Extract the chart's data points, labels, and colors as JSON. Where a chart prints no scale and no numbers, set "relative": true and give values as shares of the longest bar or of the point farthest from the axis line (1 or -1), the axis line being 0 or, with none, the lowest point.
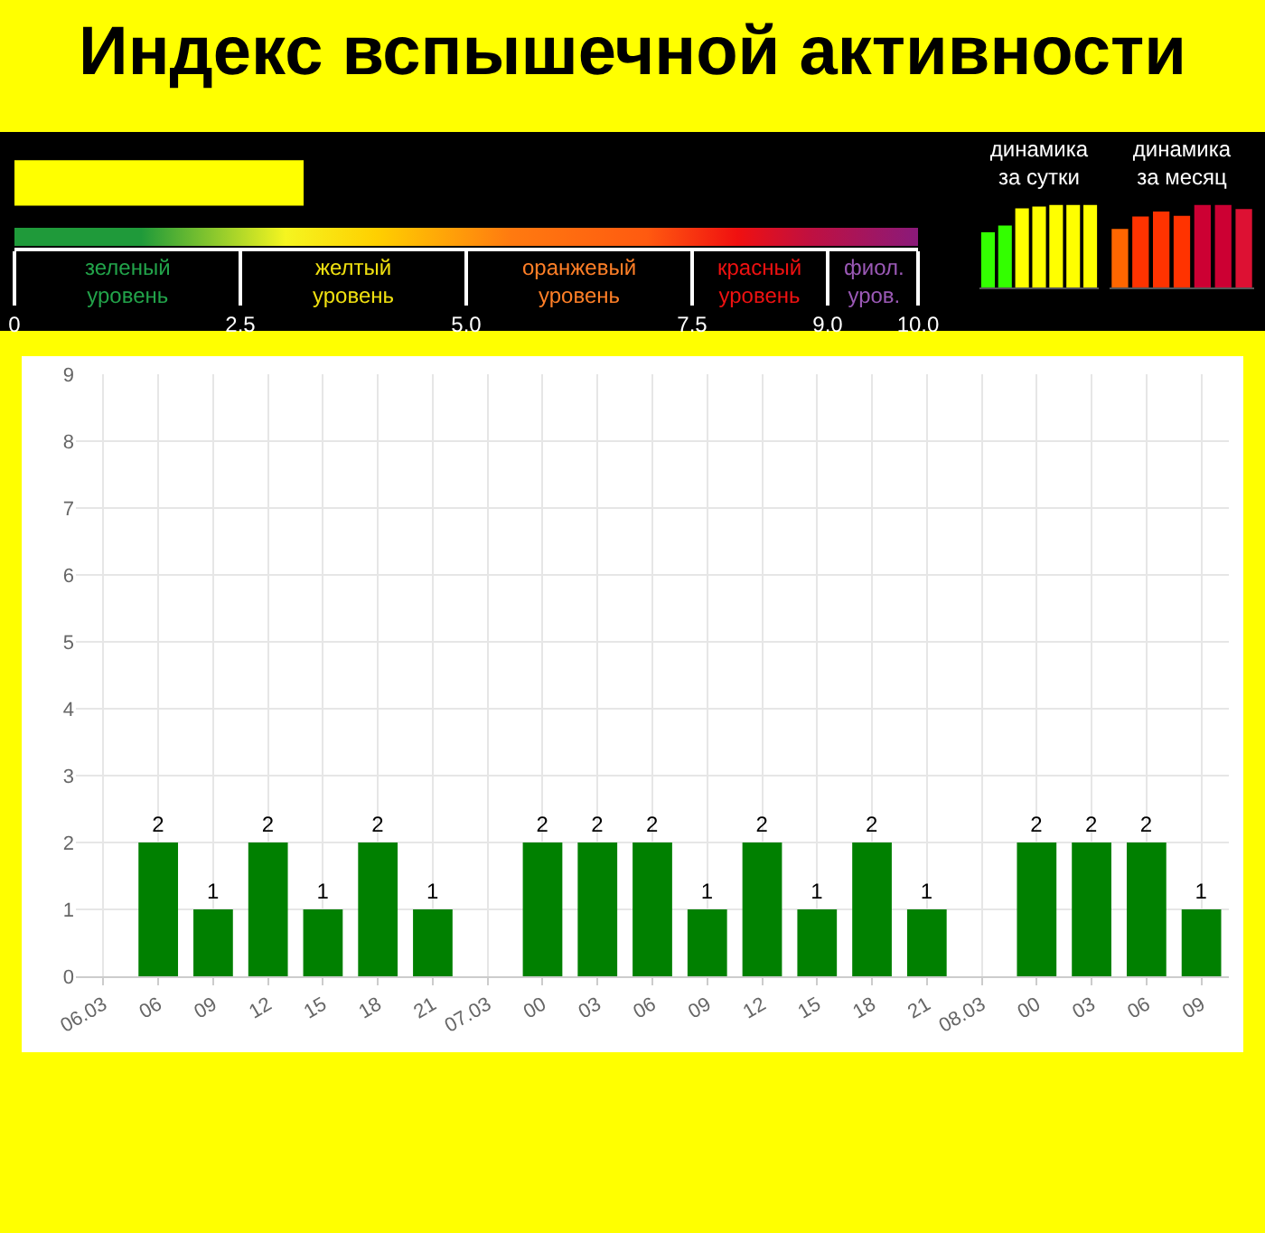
{
  "chart_data": [
    {
      "type": "bar",
      "title": "Индекс вспышечной активности",
      "orientation": "horizontal",
      "categories": [
        null
      ],
      "values": [
        3.2
      ],
      "color": "#ffff00",
      "xlim": [
        0,
        10
      ],
      "xticks": [
        0,
        2.5,
        {
          "value": 5,
          "label": "5.0"
        },
        7.5,
        {
          "value": 9,
          "label": "9.0"
        },
        {
          "value": 10,
          "label": "10.0"
        }
      ],
      "tick_labels": "x",
      "annotations": [
        "зеленый уровень",
        "желтый уровень",
        "оранжевый уровень",
        "красный уровень",
        "фиол. уров."
      ]
    },
    {
      "type": "bar",
      "title": "динамика за сутки",
      "relative": true,
      "categories": [
        null,
        null,
        null,
        null,
        null,
        null,
        null
      ],
      "values": [
        0.67,
        0.75,
        0.96,
        0.98,
        1,
        1,
        1
      ],
      "colors": [
        "#33ff00",
        "#33ff00",
        "#ffff00",
        "#ffff00",
        "#ffff00",
        "#ffff00",
        "#ffff00"
      ]
    },
    {
      "type": "bar",
      "title": "динамика за месяц",
      "relative": true,
      "categories": [
        null,
        null,
        null,
        null,
        null,
        null,
        null
      ],
      "values": [
        0.71,
        0.86,
        0.92,
        0.87,
        1,
        1,
        0.95
      ],
      "colors": [
        "#ff6600",
        "#ff3300",
        "#ff3300",
        "#ff3300",
        "#cc0033",
        "#cc0033",
        "#dd1133"
      ]
    },
    {
      "type": "bar",
      "categories": [
        "06.03",
        "06",
        "09",
        "12",
        "15",
        "18",
        "21",
        "07.03",
        "00",
        "03",
        "06",
        "09",
        "12",
        "15",
        "18",
        "21",
        "08.03",
        "00",
        "03",
        "06",
        "09"
      ],
      "values": [
        0,
        2,
        1,
        2,
        1,
        2,
        1,
        0,
        2,
        2,
        2,
        1,
        2,
        1,
        2,
        1,
        0,
        2,
        2,
        2,
        1
      ],
      "value_labels": [
        null,
        "2",
        "1",
        "2",
        "1",
        "2",
        "1",
        null,
        "2",
        "2",
        "2",
        "1",
        "2",
        "1",
        "2",
        "1",
        null,
        "2",
        "2",
        "2",
        "1"
      ],
      "color": "#008000",
      "ylim": [
        0,
        9
      ],
      "yticks": [
        0,
        1,
        2,
        3,
        4,
        5,
        6,
        7,
        8,
        9
      ],
      "grid": true
    }
  ]
}
